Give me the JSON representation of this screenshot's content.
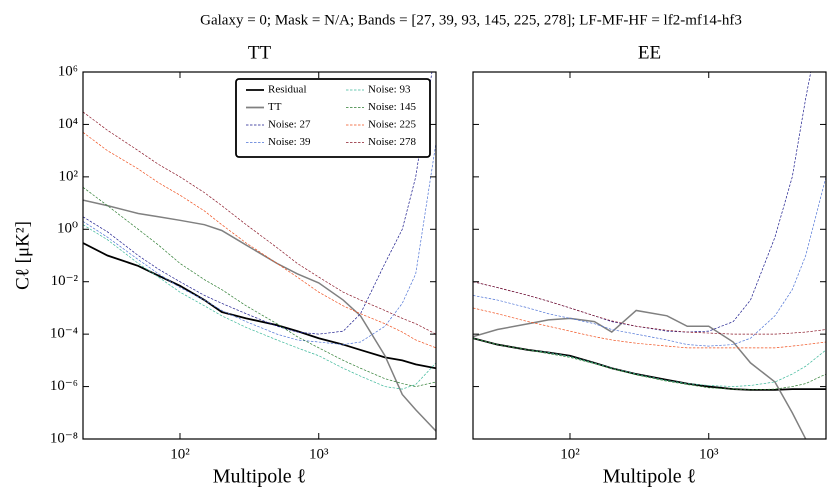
{
  "title": "Galaxy = 0; Mask = N/A; Bands = [27, 39, 93, 145, 225, 278]; LF-MF-HF = lf2-mf14-hf3",
  "chart_data": [
    {
      "type": "line",
      "title": "TT",
      "x_label": "Multipole ℓ",
      "y_label": "Cℓ [μK²]",
      "log_x": true,
      "log_y": true,
      "legend": "upper right",
      "legend_columns": 2,
      "xlim": [
        20,
        7000
      ],
      "ylim": [
        1e-08,
        1000000
      ],
      "xticks": [
        {
          "value": 100,
          "label": "10²"
        },
        {
          "value": 1000,
          "label": "10³"
        }
      ],
      "yticks": [
        {
          "value": 1e-08,
          "label": "10⁻⁸"
        },
        {
          "value": 1e-06,
          "label": "10⁻⁶"
        },
        {
          "value": 0.0001,
          "label": "10⁻⁴"
        },
        {
          "value": 0.01,
          "label": "10⁻²"
        },
        {
          "value": 1,
          "label": "10⁰"
        },
        {
          "value": 100,
          "label": "10²"
        },
        {
          "value": 10000,
          "label": "10⁴"
        },
        {
          "value": 1000000,
          "label": "10⁶"
        }
      ],
      "x": [
        20,
        30,
        50,
        70,
        100,
        150,
        200,
        300,
        500,
        700,
        1000,
        1500,
        2000,
        3000,
        4000,
        5000,
        7000
      ],
      "series": [
        {
          "name": "Residual",
          "color": "#000000",
          "linestyle": "solid",
          "values": [
            0.3,
            0.1,
            0.04,
            0.017,
            0.007,
            0.002,
            0.0007,
            0.0004,
            0.00022,
            0.00013,
            7e-05,
            4e-05,
            2.5e-05,
            1.3e-05,
            1e-05,
            7e-06,
            5e-06
          ]
        },
        {
          "name": "TT",
          "color": "#808080",
          "linestyle": "solid",
          "values": [
            13,
            8,
            4,
            3,
            2.2,
            1.5,
            0.9,
            0.25,
            0.05,
            0.02,
            0.009,
            0.002,
            0.0005,
            1.5e-05,
            5e-07,
            1.3e-07,
            2e-08
          ]
        },
        {
          "name": "Noise: 27",
          "color": "#1a1a8c",
          "linestyle": "dashed",
          "values": [
            3,
            0.8,
            0.1,
            0.03,
            0.01,
            0.003,
            0.0015,
            0.0006,
            0.0002,
            0.00012,
            0.0001,
            0.00013,
            0.0006,
            0.05,
            1,
            100,
            10000000
          ]
        },
        {
          "name": "Noise: 39",
          "color": "#4f74d6",
          "linestyle": "dashed",
          "values": [
            2,
            0.5,
            0.07,
            0.02,
            0.006,
            0.002,
            0.0008,
            0.0003,
            0.0001,
            6e-05,
            5e-05,
            4e-05,
            5e-05,
            0.0002,
            0.0015,
            0.02,
            2000
          ]
        },
        {
          "name": "Noise: 93",
          "color": "#3cb89a",
          "linestyle": "dashed",
          "values": [
            1.5,
            0.4,
            0.05,
            0.015,
            0.004,
            0.0012,
            0.0005,
            0.00018,
            6e-05,
            3e-05,
            1.5e-05,
            5e-06,
            2.5e-06,
            1e-06,
            8e-07,
            1.2e-06,
            8e-06
          ]
        },
        {
          "name": "Noise: 145",
          "color": "#2e7d32",
          "linestyle": "dashed",
          "values": [
            40,
            8,
            1,
            0.25,
            0.05,
            0.012,
            0.005,
            0.0012,
            0.00025,
            8e-05,
            3e-05,
            1e-05,
            5e-06,
            2e-06,
            1.3e-06,
            1e-06,
            1.5e-06
          ]
        },
        {
          "name": "Noise: 225",
          "color": "#f0501e",
          "linestyle": "dashed",
          "values": [
            5000,
            1000,
            200,
            60,
            20,
            5,
            1.5,
            0.3,
            0.05,
            0.015,
            0.004,
            0.0012,
            0.0006,
            0.00025,
            0.00012,
            6e-05,
            3e-05
          ]
        },
        {
          "name": "Noise: 278",
          "color": "#8b1a2a",
          "linestyle": "dashed",
          "values": [
            30000,
            6000,
            1000,
            300,
            100,
            25,
            8,
            1.5,
            0.2,
            0.05,
            0.015,
            0.004,
            0.002,
            0.0008,
            0.0004,
            0.00025,
            0.0001
          ]
        }
      ]
    },
    {
      "type": "line",
      "title": "EE",
      "x_label": "Multipole ℓ",
      "log_x": true,
      "log_y": true,
      "xlim": [
        20,
        7000
      ],
      "ylim": [
        1e-08,
        1000000
      ],
      "xticks": [
        {
          "value": 100,
          "label": "10²"
        },
        {
          "value": 1000,
          "label": "10³"
        }
      ],
      "x": [
        20,
        30,
        50,
        70,
        100,
        150,
        200,
        300,
        500,
        700,
        1000,
        1500,
        2000,
        3000,
        4000,
        5000,
        7000
      ],
      "series": [
        {
          "color": "#000000",
          "linestyle": "solid",
          "values": [
            7e-05,
            4e-05,
            2.5e-05,
            2e-05,
            1.5e-05,
            8e-06,
            5e-06,
            3e-06,
            1.8e-06,
            1.3e-06,
            1e-06,
            8e-07,
            7.5e-07,
            7.5e-07,
            8e-07,
            8e-07,
            8e-07
          ]
        },
        {
          "color": "#808080",
          "linestyle": "solid",
          "values": [
            8e-05,
            0.00015,
            0.00025,
            0.00035,
            0.0004,
            0.0003,
            0.00012,
            0.0008,
            0.0005,
            0.0002,
            0.0002,
            5e-05,
            8e-06,
            1.5e-06,
            1e-07,
            1e-08,
            1e-10
          ]
        },
        {
          "color": "#1a1a8c",
          "linestyle": "dashed",
          "values": [
            0.01,
            0.006,
            0.003,
            0.0018,
            0.001,
            0.0005,
            0.0003,
            0.0002,
            0.00013,
            0.00012,
            0.00013,
            0.0003,
            0.002,
            0.5,
            100,
            100000,
            1000000000
          ]
        },
        {
          "color": "#4f74d6",
          "linestyle": "dashed",
          "values": [
            0.003,
            0.002,
            0.001,
            0.0006,
            0.0004,
            0.00025,
            0.00015,
            0.0001,
            6e-05,
            4e-05,
            3.5e-05,
            4e-05,
            7e-05,
            0.0005,
            0.005,
            0.1,
            100
          ]
        },
        {
          "color": "#3cb89a",
          "linestyle": "dashed",
          "values": [
            7e-05,
            4e-05,
            2.5e-05,
            2e-05,
            1.4e-05,
            8e-06,
            5e-06,
            3e-06,
            1.7e-06,
            1.3e-06,
            1.1e-06,
            1e-06,
            1.1e-06,
            1.5e-06,
            3e-06,
            6e-06,
            2.5e-05
          ]
        },
        {
          "color": "#2e7d32",
          "linestyle": "dashed",
          "values": [
            7e-05,
            4e-05,
            2.5e-05,
            1.8e-05,
            1.3e-05,
            7.5e-06,
            4.8e-06,
            2.8e-06,
            1.6e-06,
            1.2e-06,
            9e-07,
            8e-07,
            7.5e-07,
            8e-07,
            1e-06,
            1.3e-06,
            3e-06
          ]
        },
        {
          "color": "#f0501e",
          "linestyle": "dashed",
          "values": [
            0.001,
            0.0006,
            0.0003,
            0.0002,
            0.00013,
            8e-05,
            6e-05,
            4.5e-05,
            3.5e-05,
            3e-05,
            3e-05,
            3e-05,
            3e-05,
            3e-05,
            3.5e-05,
            4e-05,
            5e-05
          ]
        },
        {
          "color": "#8b1a2a",
          "linestyle": "dashed",
          "values": [
            0.01,
            0.006,
            0.003,
            0.0018,
            0.001,
            0.0005,
            0.00032,
            0.0002,
            0.00014,
            0.00012,
            0.00011,
            0.0001,
            0.0001,
            0.0001,
            0.00011,
            0.00012,
            0.00015
          ]
        }
      ]
    }
  ]
}
